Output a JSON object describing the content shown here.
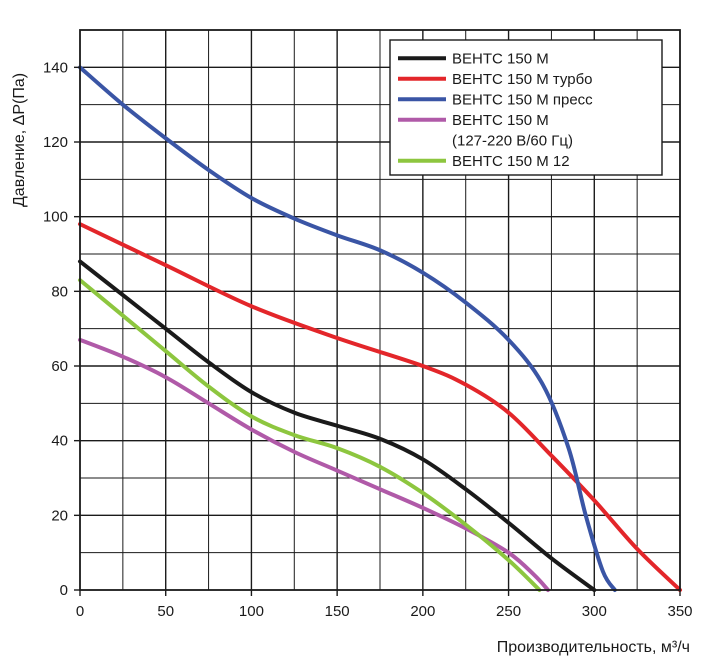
{
  "chart_data": {
    "type": "line",
    "title": "",
    "xlabel": "Производительность, м³/ч",
    "ylabel": "Давление, ΔP(Па)",
    "xlim": [
      0,
      350
    ],
    "ylim": [
      0,
      150
    ],
    "x_ticks": [
      0,
      50,
      100,
      150,
      200,
      250,
      300,
      350
    ],
    "y_ticks": [
      0,
      20,
      40,
      60,
      80,
      100,
      120,
      140
    ],
    "x_tick_labels": [
      "0",
      "50",
      "100",
      "150",
      "200",
      "250",
      "300",
      "350"
    ],
    "y_tick_labels": [
      "0",
      "20",
      "40",
      "60",
      "80",
      "100",
      "120",
      "140"
    ],
    "x_minor_step": 25,
    "y_minor_step": 10,
    "grid": true,
    "legend_position": "top-right",
    "series": [
      {
        "name": "ВЕНТС 150 М",
        "legend_lines": [
          "ВЕНТС 150 М"
        ],
        "color": "#1a1a1a",
        "points": [
          [
            0,
            88
          ],
          [
            25,
            79
          ],
          [
            50,
            70
          ],
          [
            75,
            61
          ],
          [
            100,
            53
          ],
          [
            125,
            47.5
          ],
          [
            150,
            44
          ],
          [
            175,
            40.5
          ],
          [
            200,
            35
          ],
          [
            225,
            27
          ],
          [
            250,
            18
          ],
          [
            275,
            8.5
          ],
          [
            300,
            0
          ]
        ]
      },
      {
        "name": "ВЕНТС 150 М турбо",
        "legend_lines": [
          "ВЕНТС 150 М турбо"
        ],
        "color": "#e3262a",
        "points": [
          [
            0,
            98
          ],
          [
            50,
            87
          ],
          [
            100,
            76
          ],
          [
            150,
            67.5
          ],
          [
            200,
            60
          ],
          [
            225,
            55
          ],
          [
            250,
            47.5
          ],
          [
            275,
            36
          ],
          [
            300,
            24
          ],
          [
            325,
            11
          ],
          [
            350,
            0
          ]
        ]
      },
      {
        "name": "ВЕНТС 150 М пресс",
        "legend_lines": [
          "ВЕНТС 150 М пресс"
        ],
        "color": "#3a55a5",
        "points": [
          [
            0,
            140
          ],
          [
            25,
            130
          ],
          [
            50,
            121
          ],
          [
            75,
            112.5
          ],
          [
            100,
            105
          ],
          [
            125,
            99.5
          ],
          [
            150,
            95
          ],
          [
            175,
            91
          ],
          [
            200,
            85
          ],
          [
            225,
            77
          ],
          [
            250,
            67
          ],
          [
            270,
            55
          ],
          [
            285,
            38
          ],
          [
            295,
            20
          ],
          [
            305,
            5
          ],
          [
            312,
            0
          ]
        ]
      },
      {
        "name": "ВЕНТС 150 М (127-220 В/60 Гц)",
        "legend_lines": [
          "ВЕНТС 150 М",
          "(127-220 В/60 Гц)"
        ],
        "color": "#b05aa8",
        "points": [
          [
            0,
            67
          ],
          [
            25,
            62.5
          ],
          [
            50,
            57
          ],
          [
            75,
            50
          ],
          [
            100,
            43
          ],
          [
            125,
            37
          ],
          [
            150,
            32
          ],
          [
            175,
            27
          ],
          [
            200,
            22
          ],
          [
            225,
            16.5
          ],
          [
            250,
            10
          ],
          [
            265,
            4
          ],
          [
            273,
            0
          ]
        ]
      },
      {
        "name": "ВЕНТС 150 М 12",
        "legend_lines": [
          "ВЕНТС 150 М 12"
        ],
        "color": "#8dc63f",
        "points": [
          [
            0,
            83
          ],
          [
            25,
            73.5
          ],
          [
            50,
            64
          ],
          [
            75,
            54.5
          ],
          [
            100,
            46.5
          ],
          [
            125,
            41.5
          ],
          [
            150,
            38
          ],
          [
            175,
            33
          ],
          [
            200,
            26
          ],
          [
            225,
            17.5
          ],
          [
            250,
            8
          ],
          [
            268,
            0
          ]
        ]
      }
    ]
  }
}
